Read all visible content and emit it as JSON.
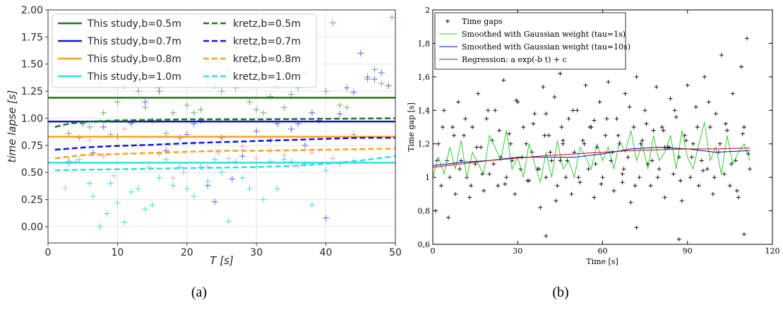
{
  "captions": [
    "(a)",
    "(b)"
  ],
  "chart_data": [
    {
      "type": "scatter",
      "xlabel": "T [s]",
      "ylabel": "time lapse [s]",
      "xlim": [
        0,
        50
      ],
      "ylim": [
        -0.15,
        2.0
      ],
      "x_ticks": [
        0,
        10,
        20,
        30,
        40,
        50
      ],
      "y_ticks": [
        0.0,
        0.25,
        0.5,
        0.75,
        1.0,
        1.25,
        1.5,
        1.75,
        2.0
      ],
      "x_tick_labels": [
        "0",
        "10",
        "20",
        "30",
        "40",
        "50"
      ],
      "y_tick_labels": [
        "0.00",
        "0.25",
        "0.50",
        "0.75",
        "1.00",
        "1.25",
        "1.50",
        "1.75",
        "2.00"
      ],
      "grid": true,
      "legend_position": "top-left",
      "series": [
        {
          "name": "This study,b=0.5m",
          "style": "solid",
          "color": "#1a7a1a",
          "x": [
            0,
            50
          ],
          "y": [
            1.19,
            1.19
          ]
        },
        {
          "name": "This study,b=0.7m",
          "style": "solid",
          "color": "#1414d2",
          "x": [
            0,
            50
          ],
          "y": [
            0.97,
            0.97
          ]
        },
        {
          "name": "This study,b=0.8m",
          "style": "solid",
          "color": "#ffa020",
          "x": [
            0,
            50
          ],
          "y": [
            0.83,
            0.83
          ]
        },
        {
          "name": "This study,b=1.0m",
          "style": "solid",
          "color": "#30e0e0",
          "x": [
            0,
            50
          ],
          "y": [
            0.59,
            0.59
          ]
        },
        {
          "name": "kretz,b=0.5m",
          "style": "dashed",
          "color": "#1a7a1a",
          "x": [
            1,
            3,
            6,
            10,
            15,
            20,
            30,
            40,
            50
          ],
          "y": [
            0.92,
            0.95,
            0.97,
            0.98,
            0.985,
            0.99,
            0.99,
            0.995,
            1.0
          ]
        },
        {
          "name": "kretz,b=0.7m",
          "style": "dashed",
          "color": "#1414d2",
          "x": [
            1,
            5,
            10,
            15,
            20,
            25,
            30,
            35,
            40,
            45,
            50
          ],
          "y": [
            0.71,
            0.73,
            0.745,
            0.755,
            0.77,
            0.78,
            0.79,
            0.8,
            0.81,
            0.82,
            0.82
          ]
        },
        {
          "name": "kretz,b=0.8m",
          "style": "dashed",
          "color": "#ffa020",
          "x": [
            1,
            5,
            10,
            15,
            20,
            25,
            30,
            35,
            40,
            45,
            50
          ],
          "y": [
            0.63,
            0.66,
            0.67,
            0.68,
            0.69,
            0.7,
            0.7,
            0.705,
            0.71,
            0.715,
            0.72
          ]
        },
        {
          "name": "kretz,b=1.0m",
          "style": "dashed",
          "color": "#30e0e0",
          "x": [
            1,
            5,
            10,
            15,
            20,
            25,
            30,
            35,
            40,
            45,
            50
          ],
          "y": [
            0.52,
            0.525,
            0.53,
            0.535,
            0.54,
            0.545,
            0.55,
            0.56,
            0.58,
            0.61,
            0.65
          ]
        }
      ],
      "scatter_series": [
        {
          "color": "#77b877",
          "x": [
            3,
            4.5,
            6,
            7.5,
            8,
            9,
            10,
            11,
            12,
            13,
            14,
            15,
            16,
            17,
            18,
            19,
            20,
            21,
            22,
            23,
            24,
            25,
            26,
            27,
            28,
            29,
            30,
            31,
            32,
            33,
            34,
            35,
            36,
            37,
            38,
            40,
            41,
            42,
            43,
            44,
            46,
            47,
            48,
            49.5
          ],
          "y": [
            0.86,
            0.82,
            0.92,
            1.32,
            1.05,
            0.85,
            1.15,
            1.3,
            0.95,
            1.25,
            1.1,
            0.98,
            1.28,
            0.86,
            1.05,
            1.35,
            1.12,
            1.05,
            1.08,
            1.32,
            1.3,
            1.25,
            1.45,
            1.28,
            1.35,
            1.15,
            1.08,
            1.05,
            1.2,
            1.3,
            1.1,
            1.22,
            1.28,
            1.42,
            1.05,
            1.25,
            1.88,
            1.12,
            1.1,
            0.85,
            1.36,
            1.45,
            1.32,
            1.93
          ]
        },
        {
          "color": "#7070e0",
          "x": [
            3,
            5,
            6.5,
            8,
            10,
            12,
            14,
            16,
            17,
            19,
            20,
            21,
            22,
            23,
            24,
            25,
            26.5,
            28,
            30,
            32,
            33,
            35,
            36,
            37,
            38,
            39,
            40,
            42,
            43,
            44,
            45,
            46,
            47,
            48,
            49
          ],
          "y": [
            0.6,
            0.95,
            0.68,
            0.92,
            0.83,
            0.96,
            1.15,
            1.25,
            0.7,
            0.82,
            0.85,
            0.95,
            0.98,
            0.38,
            0.23,
            0.82,
            0.44,
            0.65,
            0.88,
            0.8,
            0.95,
            0.9,
            0.95,
            0.75,
            1.05,
            0.98,
            0.08,
            1.04,
            1.28,
            1.24,
            1.6,
            1.38,
            1.36,
            1.42,
            1.3
          ]
        },
        {
          "color": "#f0b0c0",
          "x": [
            2.5,
            4,
            6,
            8,
            9.5,
            11,
            13,
            14.5,
            16,
            18,
            19.5,
            21,
            23,
            24.5,
            26,
            28,
            30,
            32,
            34,
            36,
            38,
            41
          ],
          "y": [
            0.36,
            0.6,
            0.8,
            0.65,
            0.47,
            0.9,
            0.75,
            0.55,
            0.67,
            0.45,
            0.5,
            0.77,
            0.55,
            0.68,
            0.63,
            0.74,
            0.63,
            0.7,
            0.66,
            0.56,
            0.68,
            0.63
          ]
        },
        {
          "color": "#50e0e0",
          "x": [
            3,
            4.5,
            6,
            6.5,
            7.5,
            8.5,
            9,
            10,
            11,
            12,
            13,
            14,
            15,
            16,
            17,
            18,
            19,
            20,
            21,
            22,
            23,
            24,
            25,
            26,
            27,
            28,
            29,
            30,
            31,
            32,
            33,
            34,
            35,
            37,
            38,
            40,
            42,
            44
          ],
          "y": [
            0.58,
            0.62,
            0.4,
            0.28,
            0.0,
            0.12,
            0.4,
            0.22,
            0.04,
            0.32,
            0.35,
            0.16,
            0.2,
            0.45,
            0.62,
            0.38,
            0.55,
            0.35,
            0.28,
            0.55,
            0.42,
            0.62,
            0.5,
            0.05,
            0.6,
            0.45,
            0.35,
            0.55,
            0.25,
            0.6,
            0.35,
            0.62,
            0.6,
            0.58,
            0.2,
            0.52,
            0.58,
            0.6
          ]
        }
      ]
    },
    {
      "type": "scatter",
      "xlabel": "Time [s]",
      "ylabel": "Time gap [s]",
      "xlim": [
        0,
        120
      ],
      "ylim": [
        0.6,
        2.0
      ],
      "x_ticks": [
        0,
        30,
        60,
        90,
        120
      ],
      "y_ticks": [
        0.6,
        0.8,
        1.0,
        1.2,
        1.4,
        1.6,
        1.8,
        2.0
      ],
      "x_tick_labels": [
        "0",
        "30",
        "60",
        "90",
        "120"
      ],
      "y_tick_labels": [
        "0,6",
        "0,8",
        "1",
        "1,2",
        "1,4",
        "1,6",
        "1,8",
        "2"
      ],
      "grid": false,
      "legend_position": "top-left",
      "legend": [
        {
          "name": "Time gaps",
          "color": "#000000",
          "style": "cross"
        },
        {
          "name": "Smoothed with Gaussian weight (tau=1s)",
          "color": "#33cc33",
          "style": "line"
        },
        {
          "name": "Smoothed with Gaussian weight (tau=10s)",
          "color": "#0000cc",
          "style": "line"
        },
        {
          "name": "Regression: a exp(-b t) + c",
          "color": "#cc0000",
          "style": "line"
        }
      ],
      "scatter_x": [
        1,
        2,
        3,
        4,
        5,
        6,
        7,
        8,
        9,
        10,
        11,
        12,
        13,
        14,
        15,
        16,
        17,
        18,
        19,
        20,
        21,
        22,
        23,
        24,
        25,
        26,
        27,
        28,
        29,
        30,
        31,
        32,
        33,
        34,
        35,
        36,
        37,
        38,
        39,
        40,
        41,
        42,
        43,
        44,
        45,
        46,
        47,
        48,
        49,
        50,
        51,
        52,
        53,
        54,
        55,
        56,
        57,
        58,
        59,
        60,
        61,
        62,
        63,
        64,
        65,
        66,
        67,
        68,
        69,
        70,
        71,
        72,
        73,
        74,
        75,
        76,
        77,
        78,
        79,
        80,
        81,
        82,
        83,
        84,
        85,
        86,
        87,
        88,
        89,
        90,
        91,
        92,
        93,
        94,
        95,
        96,
        97,
        98,
        99,
        100,
        101,
        102,
        103,
        104,
        105,
        106,
        107,
        108,
        109,
        110,
        111,
        112,
        1.5,
        3.5,
        5.5,
        7.5,
        9.5,
        11.5,
        13.5,
        15.5,
        17.5,
        19.5,
        21.5,
        23.5,
        25.5,
        27.5,
        29.5,
        31.5,
        33.5,
        35.5,
        37.5,
        39.5,
        41.5,
        43.5,
        45.5,
        47.5,
        49.5,
        51.5,
        53.5,
        55.5,
        57.5,
        59.5,
        61.5,
        63.5,
        65.5,
        67.5,
        69.5,
        71.5,
        73.5,
        75.5,
        77.5,
        79.5,
        81.5,
        83.5,
        85.5,
        87.5,
        89.5,
        91.5,
        93.5,
        95.5,
        97.5,
        99.5,
        101.5,
        103.5,
        105.5,
        107.5,
        109.5,
        111.5,
        40,
        40,
        46,
        45,
        57,
        67,
        82,
        87,
        110,
        72
      ],
      "scatter_y": [
        0.8,
        1.2,
        0.95,
        1.4,
        1.1,
        1.0,
        1.3,
        0.9,
        1.45,
        1.1,
        1.25,
        1.0,
        0.88,
        1.3,
        1.08,
        1.5,
        1.18,
        0.92,
        1.35,
        1.02,
        1.22,
        1.4,
        0.95,
        1.12,
        1.58,
        1.0,
        1.26,
        1.1,
        0.9,
        1.45,
        1.05,
        1.3,
        1.2,
        0.98,
        1.15,
        1.38,
        1.05,
        0.82,
        1.54,
        0.65,
        1.25,
        1.1,
        1.48,
        0.95,
        1.62,
        1.2,
        1.0,
        1.35,
        0.9,
        1.15,
        1.4,
        0.97,
        1.22,
        1.55,
        1.05,
        1.3,
        0.88,
        1.18,
        1.45,
        1.0,
        1.25,
        1.57,
        1.1,
        0.92,
        1.35,
        1.2,
        1.02,
        1.5,
        1.12,
        0.85,
        1.3,
        1.6,
        1.0,
        1.22,
        1.4,
        1.08,
        0.95,
        1.28,
        1.54,
        1.05,
        1.3,
        0.88,
        1.18,
        1.47,
        1.02,
        1.36,
        1.12,
        0.86,
        1.25,
        1.55,
        1.0,
        1.2,
        1.42,
        0.95,
        1.1,
        1.6,
        1.05,
        1.3,
        0.9,
        1.38,
        1.15,
        1.73,
        1.02,
        1.28,
        0.95,
        1.5,
        1.1,
        0.88,
        1.66,
        1.3,
        1.83,
        1.05,
        1.1,
        1.3,
        0.76,
        1.25,
        1.05,
        1.35,
        0.95,
        1.18,
        1.02,
        1.4,
        1.08,
        1.28,
        0.96,
        1.2,
        1.46,
        1.12,
        0.98,
        1.32,
        1.05,
        1.25,
        1.15,
        0.86,
        1.3,
        1.1,
        1.4,
        1.0,
        1.2,
        1.3,
        1.08,
        0.96,
        1.35,
        1.15,
        1.25,
        1.05,
        1.42,
        0.95,
        1.2,
        1.32,
        1.1,
        1.0,
        1.28,
        1.18,
        1.4,
        0.98,
        1.22,
        1.12,
        1.3,
        1.04,
        1.45,
        1.0,
        1.2,
        1.32,
        1.08,
        0.92,
        1.26,
        1.14,
        1.38,
        1.0,
        1.22,
        1.1,
        1.34,
        0.97,
        1.18,
        0.63,
        0.66,
        0.7,
        0.75,
        0.78,
        0.73,
        0.76,
        0.72,
        0.84,
        0.8
      ],
      "series": [
        {
          "name": "Smoothed with Gaussian weight (tau=1s)",
          "color": "#33cc33",
          "x": [
            0,
            2,
            4,
            6,
            8,
            10,
            12,
            14,
            16,
            18,
            20,
            22,
            24,
            26,
            28,
            30,
            32,
            34,
            36,
            38,
            40,
            42,
            44,
            46,
            48,
            50,
            52,
            54,
            56,
            58,
            60,
            62,
            64,
            66,
            68,
            70,
            72,
            74,
            76,
            78,
            80,
            82,
            84,
            86,
            88,
            90,
            92,
            94,
            96,
            98,
            100,
            102,
            104,
            106,
            108,
            110,
            112
          ],
          "y": [
            1.0,
            1.12,
            1.02,
            1.18,
            1.05,
            1.22,
            1.0,
            1.15,
            1.08,
            1.02,
            1.25,
            1.18,
            1.1,
            1.28,
            1.05,
            1.12,
            1.0,
            1.2,
            1.08,
            0.97,
            1.15,
            1.0,
            1.22,
            1.05,
            1.1,
            1.0,
            1.18,
            1.12,
            1.05,
            1.2,
            1.1,
            1.18,
            1.05,
            1.22,
            1.15,
            1.28,
            1.1,
            1.2,
            1.05,
            1.25,
            1.1,
            1.15,
            1.25,
            1.05,
            1.28,
            1.12,
            1.05,
            1.2,
            1.33,
            1.1,
            1.18,
            1.02,
            1.25,
            1.08,
            1.15,
            1.2,
            1.1
          ]
        },
        {
          "name": "Smoothed with Gaussian weight (tau=10s)",
          "color": "#0000cc",
          "x": [
            0,
            10,
            20,
            30,
            40,
            50,
            60,
            70,
            80,
            90,
            100,
            112
          ],
          "y": [
            1.07,
            1.09,
            1.1,
            1.12,
            1.12,
            1.12,
            1.14,
            1.17,
            1.18,
            1.17,
            1.15,
            1.16
          ]
        },
        {
          "name": "Regression: a exp(-b t) + c",
          "color": "#cc0000",
          "x": [
            0,
            10,
            20,
            30,
            40,
            50,
            60,
            70,
            80,
            90,
            100,
            112
          ],
          "y": [
            1.06,
            1.08,
            1.1,
            1.115,
            1.13,
            1.14,
            1.15,
            1.16,
            1.165,
            1.17,
            1.17,
            1.175
          ]
        }
      ]
    }
  ]
}
